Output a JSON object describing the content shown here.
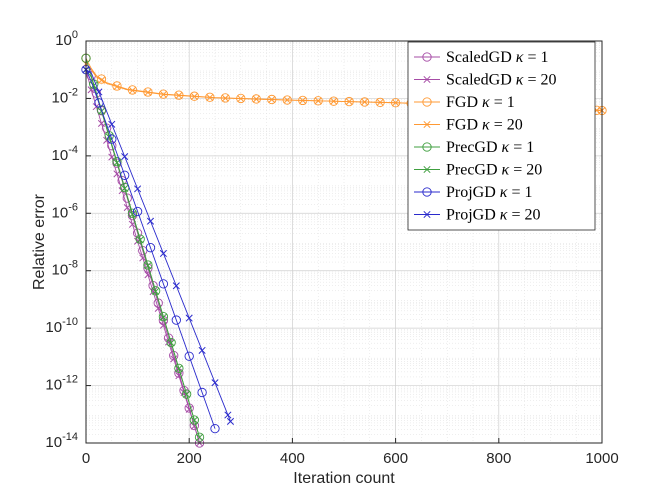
{
  "chart_data": {
    "type": "line",
    "title": "",
    "xlabel": "Iteration count",
    "ylabel": "Relative error",
    "yscale": "log",
    "xlim": [
      0,
      1000
    ],
    "ylim_exponents": [
      -14,
      0
    ],
    "grid": true,
    "minor_grid": true,
    "legend_position": "top-right",
    "x_ticks": [
      "0",
      "200",
      "400",
      "600",
      "800",
      "1000"
    ],
    "y_tick_exponents": [
      0,
      -2,
      -4,
      -6,
      -8,
      -10,
      -12,
      -14
    ],
    "series": [
      {
        "name": "ScaledGD",
        "kappa": "1",
        "color": "#a64ca6",
        "marker": "circle",
        "mark_step": 10,
        "x": [
          0,
          220
        ],
        "log10_y": [
          -0.6,
          -14.0
        ]
      },
      {
        "name": "ScaledGD",
        "kappa": "20",
        "color": "#a64ca6",
        "marker": "x",
        "mark_step": 10,
        "x": [
          0,
          10,
          220
        ],
        "log10_y": [
          -1.0,
          -1.7,
          -14.0
        ]
      },
      {
        "name": "FGD",
        "kappa": "1",
        "color": "#ff9933",
        "marker": "circle",
        "mark_step": 30,
        "x": [
          0,
          10,
          20,
          40,
          80,
          150,
          250,
          400,
          600,
          800,
          1000
        ],
        "log10_y": [
          -0.6,
          -0.95,
          -1.2,
          -1.45,
          -1.68,
          -1.85,
          -1.97,
          -2.06,
          -2.15,
          -2.28,
          -2.42
        ]
      },
      {
        "name": "FGD",
        "kappa": "20",
        "color": "#ff9933",
        "marker": "x",
        "mark_step": 30,
        "x": [
          0,
          10,
          20,
          40,
          80,
          150,
          250,
          400,
          600,
          800,
          1000
        ],
        "log10_y": [
          -0.8,
          -1.0,
          -1.25,
          -1.48,
          -1.7,
          -1.86,
          -1.98,
          -2.06,
          -2.15,
          -2.28,
          -2.42
        ]
      },
      {
        "name": "PrecGD",
        "kappa": "1",
        "color": "#3f9f3f",
        "marker": "circle",
        "mark_step": 15,
        "x": [
          0,
          10,
          220
        ],
        "log10_y": [
          -0.6,
          -1.2,
          -13.8
        ]
      },
      {
        "name": "PrecGD",
        "kappa": "20",
        "color": "#3f9f3f",
        "marker": "x",
        "mark_step": 15,
        "x": [
          0,
          10,
          220
        ],
        "log10_y": [
          -1.0,
          -1.25,
          -13.8
        ]
      },
      {
        "name": "ProjGD",
        "kappa": "1",
        "color": "#2a2acc",
        "marker": "circle",
        "mark_step": 25,
        "x": [
          0,
          10,
          250
        ],
        "log10_y": [
          -1.0,
          -1.4,
          -13.5
        ]
      },
      {
        "name": "ProjGD",
        "kappa": "20",
        "color": "#2a2acc",
        "marker": "x",
        "mark_step": 25,
        "x": [
          0,
          10,
          280
        ],
        "log10_y": [
          -1.0,
          -1.1,
          -13.25
        ]
      }
    ]
  }
}
